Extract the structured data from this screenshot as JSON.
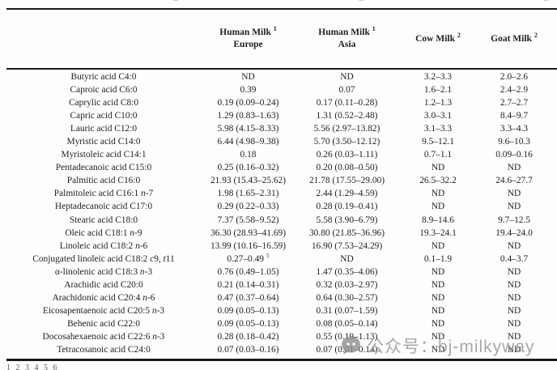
{
  "table": {
    "columns": [
      {
        "label": "",
        "sup": "",
        "sub": ""
      },
      {
        "label": "Human Milk",
        "sup": "1",
        "sub": "Europe"
      },
      {
        "label": "Human Milk",
        "sup": "1",
        "sub": "Asia"
      },
      {
        "label": "Cow Milk",
        "sup": "2",
        "sub": ""
      },
      {
        "label": "Goat Milk",
        "sup": "2",
        "sub": ""
      }
    ],
    "rows": [
      [
        "Butyric acid C4:0",
        "ND",
        "ND",
        "3.2–3.3",
        "2.0–2.6"
      ],
      [
        "Caproic acid C6:0",
        "0.39",
        "0.07",
        "1.6–2.1",
        "2.4–2.9"
      ],
      [
        "Caprylic acid C8:0",
        "0.19 (0.09–0.24)",
        "0.17 (0.11–0.28)",
        "1.2–1.3",
        "2.7–2.7"
      ],
      [
        "Capric acid C10:0",
        "1.29 (0.83–1.63)",
        "1.31 (0.52–2.48)",
        "3.0–3.1",
        "8.4–9.7"
      ],
      [
        "Lauric acid C12:0",
        "5.98 (4.15–8.33)",
        "5.56 (2.97–13.82)",
        "3.1–3.3",
        "3.3–4.3"
      ],
      [
        "Myristic acid C14:0",
        "6.44 (4.98–9.38)",
        "5.70 (3.50–12.12)",
        "9.5–12.1",
        "9.6–10.3"
      ],
      [
        "Myristoleic acid C14:1",
        "0.18",
        "0.26 (0.03–1.11)",
        "0.7–1.1",
        "0.09–0.16"
      ],
      [
        "Pentadecanoic acid C15:0",
        "0.25 (0.16–0.32)",
        "0.20 (0.08–0.50)",
        "ND",
        "ND"
      ],
      [
        "Palmitic acid C16:0",
        "21.93 (15.43–25.62)",
        "21.78 (17.55–29.00)",
        "26.5–32.2",
        "24.6–27.7"
      ],
      [
        "Palmitoleic acid C16:1 n-7",
        "1.98 (1.65–2.31)",
        "2.44 (1.29–4.59)",
        "ND",
        "ND"
      ],
      [
        "Heptadecanoic acid C17:0",
        "0.29 (0.22–0.33)",
        "0.28 (0.19–0.41)",
        "ND",
        "ND"
      ],
      [
        "Stearic acid C18:0",
        "7.37 (5.58–9.52)",
        "5.58 (3.90–6.79)",
        "8.9–14.6",
        "9.7–12.5"
      ],
      [
        "Oleic acid C18:1 n-9",
        "36.30 (28.93–41.69)",
        "30.80 (21.85–36.96)",
        "19.3–24.1",
        "19.4–24.0"
      ],
      [
        "Linoleic acid C18:2 n-6",
        "13.99 (10.16–16.59)",
        "16.90 (7.53–24.29)",
        "ND",
        "ND"
      ],
      [
        "Conjugated linoleic acid C18:2 c9, t11",
        "0.27–0.49^5",
        "ND",
        "0.1–1.9",
        "0.4–3.7"
      ],
      [
        "α-linolenic acid C18:3 n-3",
        "0.76 (0.49–1.05)",
        "1.47 (0.35–4.06)",
        "ND",
        "ND"
      ],
      [
        "Arachidic acid C20:0",
        "0.21 (0.14–0.31)",
        "0.32 (0.03–2.97)",
        "ND",
        "ND"
      ],
      [
        "Arachidonic acid C20:4 n-6",
        "0.47 (0.37–0.64)",
        "0.64 (0.30–2.57)",
        "ND",
        "ND"
      ],
      [
        "Eicosapentaenoic acid C20:5 n-3",
        "0.09 (0.05–0.13)",
        "0.31 (0.07–1.59)",
        "ND",
        "ND"
      ],
      [
        "Behenic acid C22:0",
        "0.09 (0.05–0.13)",
        "0.08 (0.05–0.14)",
        "ND",
        "ND"
      ],
      [
        "Docosahexaenoic acid C22:6 n-3",
        "0.28 (0.18–0.42)",
        "0.55 (0.19–1.13)",
        "ND",
        "ND"
      ],
      [
        "Tetracosanoic acid C24:0",
        "0.07 (0.03–0.16)",
        "0.07 (0.01–0.14)",
        "ND",
        "ND"
      ]
    ],
    "nd_label": "ND"
  },
  "footnote_clipped": "1            2            3                       4            5            6",
  "watermark": {
    "text": "公众号：bj-milkyway",
    "icon": "chat-bubble-logo-icon",
    "color": "#9e9ea0"
  }
}
